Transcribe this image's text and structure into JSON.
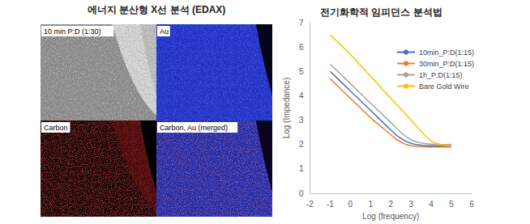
{
  "edax": {
    "title": "에너지 분산형 X선 분석 (EDAX)",
    "panels": [
      {
        "label": "10 min P:D (1:30)"
      },
      {
        "label": "Au"
      },
      {
        "label": "Carbon"
      },
      {
        "label": "Carbon, Au (merged)"
      }
    ]
  },
  "chart_data": {
    "type": "line",
    "title": "전기화학적 임피던스 분석법",
    "x_label": "Log (frequency)",
    "y_label": "Log (Impedance)",
    "x": [
      -1,
      -0.5,
      0,
      0.5,
      1,
      1.5,
      2,
      2.5,
      3,
      3.5,
      4,
      4.5,
      5
    ],
    "series": [
      {
        "name": "10min_P:D(1:15)",
        "color": "#4472c4",
        "values": [
          5.0,
          4.6,
          4.2,
          3.8,
          3.4,
          3.0,
          2.6,
          2.25,
          2.05,
          1.98,
          1.95,
          1.95,
          1.95
        ]
      },
      {
        "name": "30min_P:D(1:15)",
        "color": "#ed7d31",
        "values": [
          4.7,
          4.3,
          3.9,
          3.5,
          3.1,
          2.75,
          2.4,
          2.1,
          1.95,
          1.92,
          1.9,
          1.9,
          1.9
        ]
      },
      {
        "name": "1h_P:D(1:15)",
        "color": "#a5a5a5",
        "values": [
          5.3,
          4.9,
          4.5,
          4.1,
          3.7,
          3.3,
          2.9,
          2.5,
          2.2,
          2.07,
          2.02,
          2.0,
          2.0
        ]
      },
      {
        "name": "Bare Gold Wire",
        "color": "#ffc000",
        "values": [
          6.5,
          6.1,
          5.7,
          5.25,
          4.8,
          4.35,
          3.9,
          3.45,
          3.0,
          2.55,
          2.15,
          2.0,
          1.95
        ]
      }
    ],
    "xlim": [
      -2,
      6
    ],
    "xticks": [
      -2,
      -1,
      0,
      1,
      2,
      3,
      4,
      5,
      6
    ],
    "ylim": [
      0,
      7
    ],
    "yticks": [
      0,
      1,
      2,
      3,
      4,
      5,
      6,
      7
    ],
    "grid": false,
    "legend": "upper right"
  }
}
